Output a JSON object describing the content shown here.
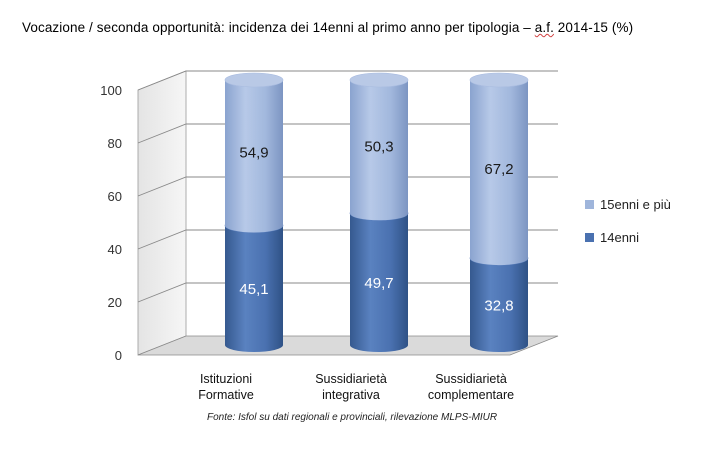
{
  "title_main": "Vocazione / seconda opportunità: incidenza dei 14enni al primo anno per tipologia – ",
  "title_af": "a.f.",
  "title_end": " 2014-15 (%)",
  "source": "Fonte: Isfol su dati regionali e provinciali, rilevazione MLPS-MIUR",
  "chart_data": {
    "type": "bar",
    "stacked": true,
    "style": "3d-cylinder",
    "title": "Vocazione / seconda opportunità: incidenza dei 14enni al primo anno per tipologia – a.f. 2014-15 (%)",
    "categories": [
      [
        "Istituzioni",
        "Formative"
      ],
      [
        "Sussidiarietà",
        "integrativa"
      ],
      [
        "Sussidiarietà",
        "complementare"
      ]
    ],
    "series": [
      {
        "name": "14enni",
        "values": [
          45.1,
          49.7,
          32.8
        ],
        "labels": [
          "45,1",
          "49,7",
          "32,8"
        ],
        "color": "#4a71b0"
      },
      {
        "name": "15enni e più",
        "values": [
          54.9,
          50.3,
          67.2
        ],
        "labels": [
          "54,9",
          "50,3",
          "67,2"
        ],
        "color": "#9fb5db"
      }
    ],
    "yticks": [
      "0",
      "20",
      "40",
      "60",
      "80",
      "100"
    ],
    "ylim": [
      0,
      100
    ],
    "legend_position": "right",
    "grid": true
  }
}
